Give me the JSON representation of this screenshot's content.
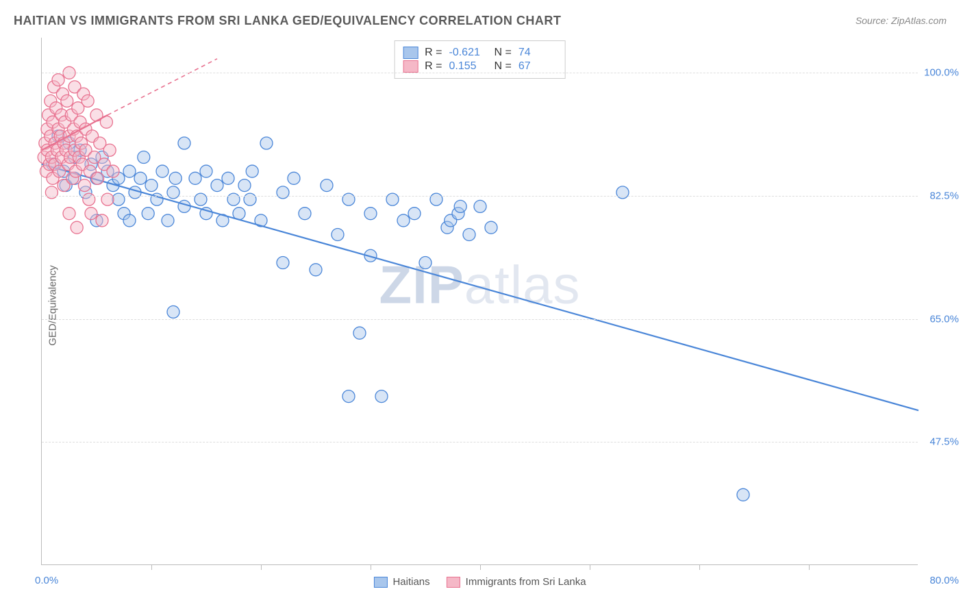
{
  "title": "HAITIAN VS IMMIGRANTS FROM SRI LANKA GED/EQUIVALENCY CORRELATION CHART",
  "source": "Source: ZipAtlas.com",
  "ylabel": "GED/Equivalency",
  "watermark_bold": "ZIP",
  "watermark_rest": "atlas",
  "chart": {
    "type": "scatter",
    "xlim": [
      0,
      80
    ],
    "ylim": [
      30,
      105
    ],
    "x_axis_label_min": "0.0%",
    "x_axis_label_max": "80.0%",
    "xtick_positions": [
      10,
      20,
      30,
      40,
      50,
      60,
      70
    ],
    "yticks": [
      {
        "v": 47.5,
        "label": "47.5%"
      },
      {
        "v": 65.0,
        "label": "65.0%"
      },
      {
        "v": 82.5,
        "label": "82.5%"
      },
      {
        "v": 100.0,
        "label": "100.0%"
      }
    ],
    "background_color": "#ffffff",
    "grid_color": "#dddddd",
    "marker_radius": 9,
    "marker_opacity": 0.45,
    "trend_line_width": 2.2,
    "series": [
      {
        "name": "Haitians",
        "fill": "#a8c6ec",
        "stroke": "#4a86d8",
        "trend": {
          "x1": 0,
          "y1": 87,
          "x2": 80,
          "y2": 52,
          "dashed": false
        },
        "R": "-0.621",
        "N": "74",
        "points": [
          [
            1,
            87
          ],
          [
            1.5,
            91
          ],
          [
            2,
            86
          ],
          [
            2.2,
            84
          ],
          [
            2.5,
            90
          ],
          [
            3,
            85
          ],
          [
            3,
            88
          ],
          [
            3.5,
            89
          ],
          [
            4,
            83
          ],
          [
            4.5,
            87
          ],
          [
            5,
            85
          ],
          [
            5,
            79
          ],
          [
            5.5,
            88
          ],
          [
            6,
            86
          ],
          [
            6.5,
            84
          ],
          [
            7,
            85
          ],
          [
            7,
            82
          ],
          [
            7.5,
            80
          ],
          [
            8,
            86
          ],
          [
            8,
            79
          ],
          [
            8.5,
            83
          ],
          [
            9,
            85
          ],
          [
            9.3,
            88
          ],
          [
            9.7,
            80
          ],
          [
            10,
            84
          ],
          [
            10.5,
            82
          ],
          [
            11,
            86
          ],
          [
            11.5,
            79
          ],
          [
            12,
            83
          ],
          [
            12.2,
            85
          ],
          [
            13,
            81
          ],
          [
            13,
            90
          ],
          [
            14,
            85
          ],
          [
            14.5,
            82
          ],
          [
            15,
            80
          ],
          [
            15,
            86
          ],
          [
            16,
            84
          ],
          [
            16.5,
            79
          ],
          [
            17,
            85
          ],
          [
            17.5,
            82
          ],
          [
            18,
            80
          ],
          [
            18.5,
            84
          ],
          [
            19,
            82
          ],
          [
            19.2,
            86
          ],
          [
            20,
            79
          ],
          [
            20.5,
            90
          ],
          [
            22,
            83
          ],
          [
            22,
            73
          ],
          [
            23,
            85
          ],
          [
            24,
            80
          ],
          [
            25,
            72
          ],
          [
            26,
            84
          ],
          [
            27,
            77
          ],
          [
            28,
            82
          ],
          [
            28,
            54
          ],
          [
            29,
            63
          ],
          [
            30,
            74
          ],
          [
            30,
            80
          ],
          [
            31,
            54
          ],
          [
            32,
            82
          ],
          [
            33,
            79
          ],
          [
            34,
            80
          ],
          [
            35,
            73
          ],
          [
            36,
            82
          ],
          [
            37,
            78
          ],
          [
            37.3,
            79
          ],
          [
            38,
            80
          ],
          [
            38.2,
            81
          ],
          [
            39,
            77
          ],
          [
            40,
            81
          ],
          [
            41,
            78
          ],
          [
            53,
            83
          ],
          [
            64,
            40
          ],
          [
            12,
            66
          ]
        ]
      },
      {
        "name": "Immigrants from Sri Lanka",
        "fill": "#f5b8c7",
        "stroke": "#e8718f",
        "trend": {
          "x1": 0,
          "y1": 89,
          "x2": 6,
          "y2": 94,
          "dashed": false
        },
        "trend_ext": {
          "x1": 6,
          "y1": 94,
          "x2": 16,
          "y2": 102,
          "dashed": true
        },
        "R": "0.155",
        "N": "67",
        "points": [
          [
            0.2,
            88
          ],
          [
            0.3,
            90
          ],
          [
            0.4,
            86
          ],
          [
            0.5,
            92
          ],
          [
            0.5,
            89
          ],
          [
            0.6,
            94
          ],
          [
            0.7,
            87
          ],
          [
            0.8,
            91
          ],
          [
            0.8,
            96
          ],
          [
            0.9,
            88
          ],
          [
            1.0,
            93
          ],
          [
            1.0,
            85
          ],
          [
            1.1,
            98
          ],
          [
            1.2,
            90
          ],
          [
            1.2,
            87
          ],
          [
            1.3,
            95
          ],
          [
            1.4,
            89
          ],
          [
            1.5,
            92
          ],
          [
            1.5,
            99
          ],
          [
            1.6,
            86
          ],
          [
            1.7,
            91
          ],
          [
            1.8,
            94
          ],
          [
            1.8,
            88
          ],
          [
            1.9,
            97
          ],
          [
            2.0,
            90
          ],
          [
            2.0,
            84
          ],
          [
            2.1,
            93
          ],
          [
            2.2,
            89
          ],
          [
            2.3,
            96
          ],
          [
            2.4,
            87
          ],
          [
            2.5,
            91
          ],
          [
            2.5,
            100
          ],
          [
            2.6,
            88
          ],
          [
            2.7,
            94
          ],
          [
            2.8,
            85
          ],
          [
            2.9,
            92
          ],
          [
            3.0,
            89
          ],
          [
            3.0,
            98
          ],
          [
            3.1,
            86
          ],
          [
            3.2,
            91
          ],
          [
            3.3,
            95
          ],
          [
            3.4,
            88
          ],
          [
            3.5,
            93
          ],
          [
            3.6,
            90
          ],
          [
            3.7,
            87
          ],
          [
            3.8,
            97
          ],
          [
            3.9,
            84
          ],
          [
            4.0,
            92
          ],
          [
            4.0,
            89
          ],
          [
            4.2,
            96
          ],
          [
            4.4,
            86
          ],
          [
            4.5,
            80
          ],
          [
            4.6,
            91
          ],
          [
            4.8,
            88
          ],
          [
            5.0,
            94
          ],
          [
            5.1,
            85
          ],
          [
            5.3,
            90
          ],
          [
            5.5,
            79
          ],
          [
            5.7,
            87
          ],
          [
            5.9,
            93
          ],
          [
            6.0,
            82
          ],
          [
            6.2,
            89
          ],
          [
            6.5,
            86
          ],
          [
            2.5,
            80
          ],
          [
            3.2,
            78
          ],
          [
            4.3,
            82
          ],
          [
            0.9,
            83
          ]
        ]
      }
    ],
    "legend_top": {
      "R_label": "R =",
      "N_label": "N ="
    },
    "legend_bottom": [
      {
        "sw_fill": "#a8c6ec",
        "sw_stroke": "#4a86d8",
        "label": "Haitians"
      },
      {
        "sw_fill": "#f5b8c7",
        "sw_stroke": "#e8718f",
        "label": "Immigrants from Sri Lanka"
      }
    ]
  }
}
